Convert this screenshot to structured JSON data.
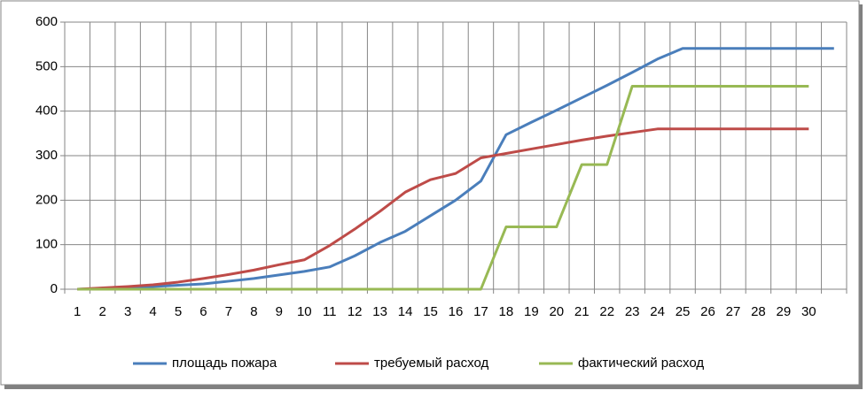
{
  "chart_data": {
    "type": "line",
    "categories": [
      "1",
      "2",
      "3",
      "4",
      "5",
      "6",
      "7",
      "8",
      "9",
      "10",
      "11",
      "12",
      "13",
      "14",
      "15",
      "16",
      "17",
      "18",
      "19",
      "20",
      "21",
      "22",
      "23",
      "24",
      "25",
      "26",
      "27",
      "28",
      "29",
      "30",
      null
    ],
    "series": [
      {
        "name": "площадь пожара",
        "color": "#4a7ebb",
        "values": [
          0,
          2,
          4,
          6,
          9,
          12,
          18,
          24,
          32,
          40,
          50,
          75,
          105,
          130,
          165,
          200,
          243,
          347,
          375,
          402,
          430,
          458,
          487,
          517,
          541,
          541,
          541,
          541,
          541,
          541,
          541
        ]
      },
      {
        "name": "требуемый расход",
        "color": "#be4b48",
        "values": [
          0,
          3,
          6,
          10,
          16,
          24,
          33,
          43,
          55,
          66,
          98,
          135,
          175,
          218,
          246,
          260,
          295,
          305,
          315,
          325,
          335,
          344,
          352,
          360,
          360,
          360,
          360,
          360,
          360,
          360,
          null
        ]
      },
      {
        "name": "фактический расход",
        "color": "#98b954",
        "values": [
          0,
          0,
          0,
          0,
          0,
          0,
          0,
          0,
          0,
          0,
          0,
          0,
          0,
          0,
          0,
          0,
          0,
          140,
          140,
          140,
          280,
          280,
          456,
          456,
          456,
          456,
          456,
          456,
          456,
          456,
          null
        ]
      }
    ],
    "ylim": [
      0,
      600
    ],
    "yticks": [
      0,
      100,
      200,
      300,
      400,
      500,
      600
    ],
    "grid": true,
    "legend": "bottom"
  }
}
